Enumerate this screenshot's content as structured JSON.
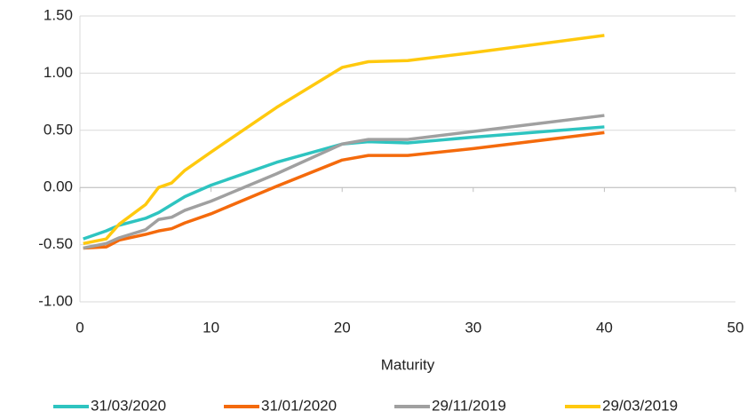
{
  "chart_data": {
    "type": "line",
    "x_label": "Maturity",
    "x": [
      0.25,
      2,
      3,
      5,
      6,
      7,
      8,
      10,
      15,
      20,
      22,
      25,
      30,
      40
    ],
    "series": [
      {
        "name": "31/03/2020",
        "color": "#2ec4c0",
        "values": [
          -0.45,
          -0.38,
          -0.33,
          -0.27,
          -0.22,
          -0.15,
          -0.08,
          0.02,
          0.22,
          0.38,
          0.4,
          0.39,
          0.44,
          0.53
        ]
      },
      {
        "name": "31/01/2020",
        "color": "#f46a0c",
        "values": [
          -0.53,
          -0.52,
          -0.46,
          -0.41,
          -0.38,
          -0.36,
          -0.31,
          -0.23,
          0.01,
          0.24,
          0.28,
          0.28,
          0.34,
          0.48
        ]
      },
      {
        "name": "29/11/2019",
        "color": "#a0a0a0",
        "values": [
          -0.53,
          -0.49,
          -0.44,
          -0.37,
          -0.28,
          -0.26,
          -0.2,
          -0.12,
          0.12,
          0.38,
          0.42,
          0.42,
          0.49,
          0.63
        ]
      },
      {
        "name": "29/03/2019",
        "color": "#ffc90e",
        "values": [
          -0.49,
          -0.45,
          -0.32,
          -0.15,
          0.0,
          0.04,
          0.15,
          0.31,
          0.7,
          1.05,
          1.1,
          1.11,
          1.18,
          1.33
        ]
      }
    ],
    "xlim": [
      0,
      50
    ],
    "xticks": [
      0,
      10,
      20,
      30,
      40,
      50
    ],
    "ylim": [
      -1,
      1.5
    ],
    "yticks": [
      {
        "value": -1,
        "label": "-1.00"
      },
      {
        "value": -0.5,
        "label": "-0.50"
      },
      {
        "value": 0,
        "label": "0.00"
      },
      {
        "value": 0.5,
        "label": "0.50"
      },
      {
        "value": 1,
        "label": "1.00"
      },
      {
        "value": 1.5,
        "label": "1.50"
      }
    ],
    "grid": true,
    "legend": "bottom"
  }
}
